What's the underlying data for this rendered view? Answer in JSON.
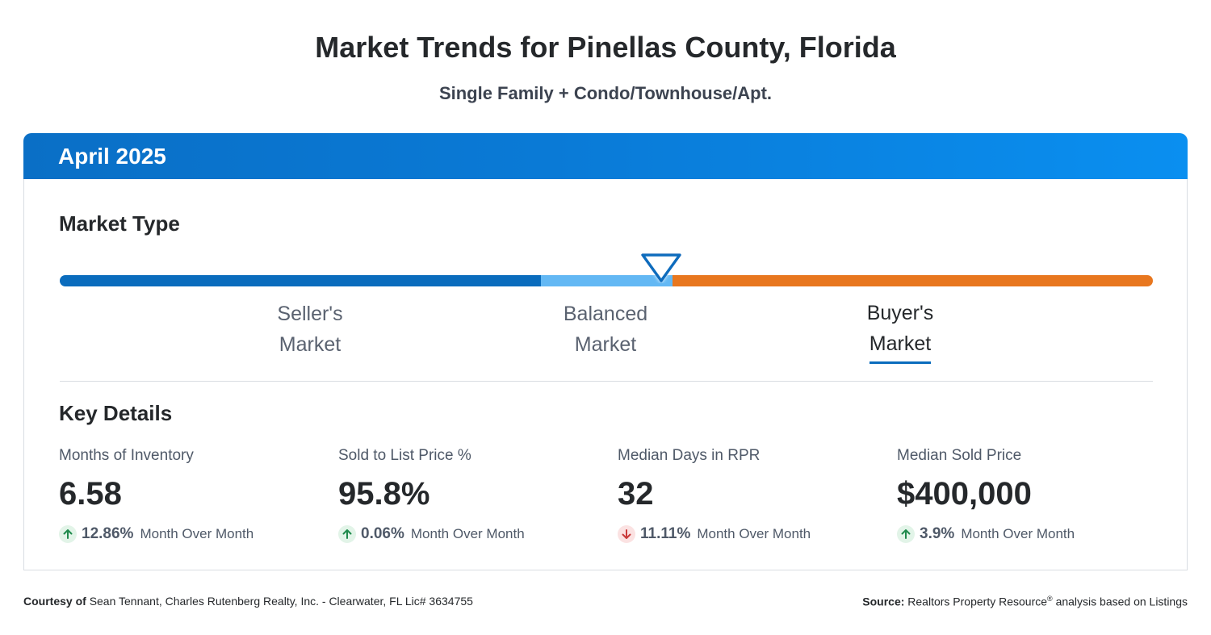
{
  "title": "Market Trends for Pinellas County, Florida",
  "subtitle": "Single Family + Condo/Townhouse/Apt.",
  "period": "April 2025",
  "market_type": {
    "heading": "Market Type",
    "labels": {
      "seller": [
        "Seller's",
        "Market"
      ],
      "balanced": [
        "Balanced",
        "Market"
      ],
      "buyer": [
        "Buyer's",
        "Market"
      ]
    },
    "active": "buyer",
    "colors": {
      "seller": "#0a6cbd",
      "balanced": "#63b8f4",
      "buyer": "#e8771f"
    }
  },
  "key_details": {
    "heading": "Key Details",
    "stats": [
      {
        "label": "Months of Inventory",
        "value": "6.58",
        "change": "12.86%",
        "direction": "up",
        "period": "Month Over Month"
      },
      {
        "label": "Sold to List Price %",
        "value": "95.8%",
        "change": "0.06%",
        "direction": "up",
        "period": "Month Over Month"
      },
      {
        "label": "Median Days in RPR",
        "value": "32",
        "change": "11.11%",
        "direction": "down",
        "period": "Month Over Month"
      },
      {
        "label": "Median Sold Price",
        "value": "$400,000",
        "change": "3.9%",
        "direction": "up",
        "period": "Month Over Month"
      }
    ]
  },
  "footer": {
    "courtesy_label": "Courtesy of",
    "courtesy_text": "Sean Tennant, Charles Rutenberg Realty, Inc. - Clearwater, FL Lic# 3634755",
    "source_label": "Source:",
    "source_text_1": "Realtors Property Resource",
    "source_reg": "®",
    "source_text_2": "analysis based on Listings"
  },
  "icons": {
    "up": "arrow-up-icon",
    "down": "arrow-down-icon",
    "pointer": "triangle-pointer-icon"
  }
}
